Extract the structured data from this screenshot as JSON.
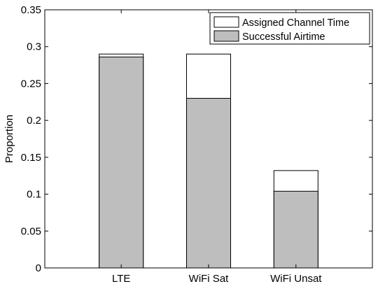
{
  "chart_data": {
    "type": "bar",
    "stacked_overlay": true,
    "categories": [
      "LTE",
      "WiFi Sat",
      "WiFi Unsat"
    ],
    "series": [
      {
        "name": "Assigned Channel Time",
        "values": [
          0.29,
          0.29,
          0.132
        ],
        "color": "#ffffff"
      },
      {
        "name": "Successful Airtime",
        "values": [
          0.286,
          0.23,
          0.104
        ],
        "color": "#bebebe"
      }
    ],
    "title": "",
    "xlabel": "",
    "ylabel": "Proportion",
    "ylim": [
      0,
      0.35
    ],
    "yticks": [
      0,
      0.05,
      0.1,
      0.15,
      0.2,
      0.25,
      0.3,
      0.35
    ],
    "ytick_labels": [
      "0",
      "0.05",
      "0.1",
      "0.15",
      "0.2",
      "0.25",
      "0.3",
      "0.35"
    ],
    "grid": false,
    "legend_position": "top-right"
  }
}
